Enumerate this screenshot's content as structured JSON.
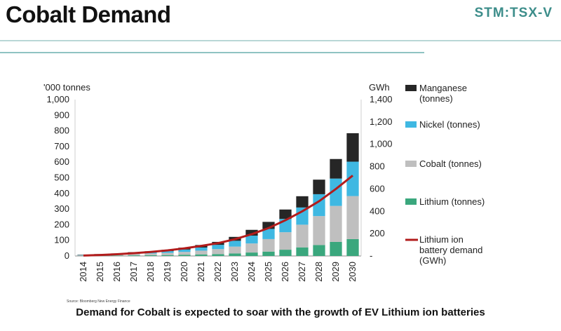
{
  "header": {
    "title": "Cobalt Demand",
    "ticker": "STM:TSX-V"
  },
  "footer": {
    "caption": "Demand for Cobalt is expected to soar with the growth of EV Lithium ion batteries"
  },
  "chart_data": {
    "type": "bar",
    "stacked": true,
    "categories": [
      "2014",
      "2015",
      "2016",
      "2017",
      "2018",
      "2019",
      "2020",
      "2021",
      "2022",
      "2023",
      "2024",
      "2025",
      "2026",
      "2027",
      "2028",
      "2029",
      "2030"
    ],
    "ylabel_left": "'000 tonnes",
    "ylabel_right": "GWh",
    "ylim_left": [
      0,
      1000
    ],
    "ylim_right": [
      0,
      1400
    ],
    "yticks_left": [
      "0",
      "100",
      "200",
      "300",
      "400",
      "500",
      "600",
      "700",
      "800",
      "900",
      "1,000"
    ],
    "yticks_right": [
      "-",
      "200",
      "400",
      "600",
      "800",
      "1,000",
      "1,200",
      "1,400"
    ],
    "series": [
      {
        "name": "Lithium (tonnes)",
        "color": "#3aa77d",
        "values": [
          1,
          2,
          3,
          4,
          5,
          6,
          8,
          10,
          12,
          16,
          22,
          28,
          40,
          55,
          70,
          90,
          108
        ]
      },
      {
        "name": "Cobalt (tonnes)",
        "color": "#bfbfbf",
        "values": [
          3,
          4,
          6,
          9,
          11,
          14,
          18,
          24,
          32,
          44,
          58,
          80,
          112,
          145,
          185,
          230,
          275
        ]
      },
      {
        "name": "Nickel (tonnes)",
        "color": "#3fb8e2",
        "values": [
          2,
          3,
          4,
          6,
          8,
          11,
          15,
          20,
          27,
          37,
          50,
          65,
          85,
          110,
          140,
          175,
          220
        ]
      },
      {
        "name": "Manganese\n(tonnes)",
        "color": "#262626",
        "values": [
          2,
          3,
          3,
          5,
          6,
          8,
          12,
          16,
          19,
          25,
          37,
          45,
          60,
          72,
          93,
          125,
          182
        ]
      }
    ],
    "line_series": {
      "name": "Lithium ion\nbattery demand\n(GWh)",
      "color": "#b21c1c",
      "axis": "right",
      "values": [
        4,
        9,
        16,
        25,
        36,
        50,
        68,
        90,
        115,
        150,
        195,
        250,
        320,
        400,
        490,
        600,
        720
      ]
    },
    "source_note": "Source: Bloomberg New Energy Finance",
    "legend": "right",
    "grid": false
  }
}
